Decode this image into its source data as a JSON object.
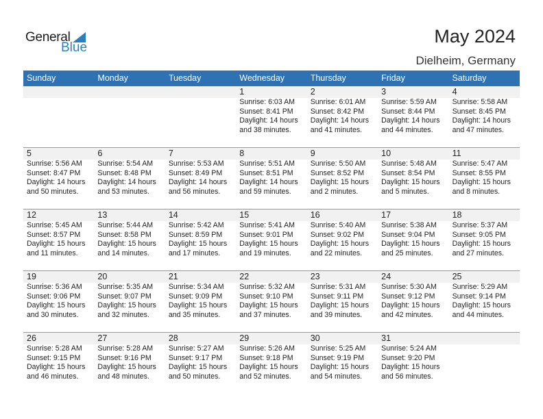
{
  "logo": {
    "word1": "General",
    "word2": "Blue",
    "accent": "#2a7fc1"
  },
  "header": {
    "title": "May 2024",
    "location": "Dielheim, Germany"
  },
  "colors": {
    "header_bg": "#2e72b3",
    "daybar_bg": "#f1f1f1"
  },
  "weekdays": [
    "Sunday",
    "Monday",
    "Tuesday",
    "Wednesday",
    "Thursday",
    "Friday",
    "Saturday"
  ],
  "weeks": [
    [
      null,
      null,
      null,
      {
        "day": "1",
        "sunrise": "Sunrise: 6:03 AM",
        "sunset": "Sunset: 8:41 PM",
        "daylight1": "Daylight: 14 hours",
        "daylight2": "and 38 minutes."
      },
      {
        "day": "2",
        "sunrise": "Sunrise: 6:01 AM",
        "sunset": "Sunset: 8:42 PM",
        "daylight1": "Daylight: 14 hours",
        "daylight2": "and 41 minutes."
      },
      {
        "day": "3",
        "sunrise": "Sunrise: 5:59 AM",
        "sunset": "Sunset: 8:44 PM",
        "daylight1": "Daylight: 14 hours",
        "daylight2": "and 44 minutes."
      },
      {
        "day": "4",
        "sunrise": "Sunrise: 5:58 AM",
        "sunset": "Sunset: 8:45 PM",
        "daylight1": "Daylight: 14 hours",
        "daylight2": "and 47 minutes."
      }
    ],
    [
      {
        "day": "5",
        "sunrise": "Sunrise: 5:56 AM",
        "sunset": "Sunset: 8:47 PM",
        "daylight1": "Daylight: 14 hours",
        "daylight2": "and 50 minutes."
      },
      {
        "day": "6",
        "sunrise": "Sunrise: 5:54 AM",
        "sunset": "Sunset: 8:48 PM",
        "daylight1": "Daylight: 14 hours",
        "daylight2": "and 53 minutes."
      },
      {
        "day": "7",
        "sunrise": "Sunrise: 5:53 AM",
        "sunset": "Sunset: 8:49 PM",
        "daylight1": "Daylight: 14 hours",
        "daylight2": "and 56 minutes."
      },
      {
        "day": "8",
        "sunrise": "Sunrise: 5:51 AM",
        "sunset": "Sunset: 8:51 PM",
        "daylight1": "Daylight: 14 hours",
        "daylight2": "and 59 minutes."
      },
      {
        "day": "9",
        "sunrise": "Sunrise: 5:50 AM",
        "sunset": "Sunset: 8:52 PM",
        "daylight1": "Daylight: 15 hours",
        "daylight2": "and 2 minutes."
      },
      {
        "day": "10",
        "sunrise": "Sunrise: 5:48 AM",
        "sunset": "Sunset: 8:54 PM",
        "daylight1": "Daylight: 15 hours",
        "daylight2": "and 5 minutes."
      },
      {
        "day": "11",
        "sunrise": "Sunrise: 5:47 AM",
        "sunset": "Sunset: 8:55 PM",
        "daylight1": "Daylight: 15 hours",
        "daylight2": "and 8 minutes."
      }
    ],
    [
      {
        "day": "12",
        "sunrise": "Sunrise: 5:45 AM",
        "sunset": "Sunset: 8:57 PM",
        "daylight1": "Daylight: 15 hours",
        "daylight2": "and 11 minutes."
      },
      {
        "day": "13",
        "sunrise": "Sunrise: 5:44 AM",
        "sunset": "Sunset: 8:58 PM",
        "daylight1": "Daylight: 15 hours",
        "daylight2": "and 14 minutes."
      },
      {
        "day": "14",
        "sunrise": "Sunrise: 5:42 AM",
        "sunset": "Sunset: 8:59 PM",
        "daylight1": "Daylight: 15 hours",
        "daylight2": "and 17 minutes."
      },
      {
        "day": "15",
        "sunrise": "Sunrise: 5:41 AM",
        "sunset": "Sunset: 9:01 PM",
        "daylight1": "Daylight: 15 hours",
        "daylight2": "and 19 minutes."
      },
      {
        "day": "16",
        "sunrise": "Sunrise: 5:40 AM",
        "sunset": "Sunset: 9:02 PM",
        "daylight1": "Daylight: 15 hours",
        "daylight2": "and 22 minutes."
      },
      {
        "day": "17",
        "sunrise": "Sunrise: 5:38 AM",
        "sunset": "Sunset: 9:04 PM",
        "daylight1": "Daylight: 15 hours",
        "daylight2": "and 25 minutes."
      },
      {
        "day": "18",
        "sunrise": "Sunrise: 5:37 AM",
        "sunset": "Sunset: 9:05 PM",
        "daylight1": "Daylight: 15 hours",
        "daylight2": "and 27 minutes."
      }
    ],
    [
      {
        "day": "19",
        "sunrise": "Sunrise: 5:36 AM",
        "sunset": "Sunset: 9:06 PM",
        "daylight1": "Daylight: 15 hours",
        "daylight2": "and 30 minutes."
      },
      {
        "day": "20",
        "sunrise": "Sunrise: 5:35 AM",
        "sunset": "Sunset: 9:07 PM",
        "daylight1": "Daylight: 15 hours",
        "daylight2": "and 32 minutes."
      },
      {
        "day": "21",
        "sunrise": "Sunrise: 5:34 AM",
        "sunset": "Sunset: 9:09 PM",
        "daylight1": "Daylight: 15 hours",
        "daylight2": "and 35 minutes."
      },
      {
        "day": "22",
        "sunrise": "Sunrise: 5:32 AM",
        "sunset": "Sunset: 9:10 PM",
        "daylight1": "Daylight: 15 hours",
        "daylight2": "and 37 minutes."
      },
      {
        "day": "23",
        "sunrise": "Sunrise: 5:31 AM",
        "sunset": "Sunset: 9:11 PM",
        "daylight1": "Daylight: 15 hours",
        "daylight2": "and 39 minutes."
      },
      {
        "day": "24",
        "sunrise": "Sunrise: 5:30 AM",
        "sunset": "Sunset: 9:12 PM",
        "daylight1": "Daylight: 15 hours",
        "daylight2": "and 42 minutes."
      },
      {
        "day": "25",
        "sunrise": "Sunrise: 5:29 AM",
        "sunset": "Sunset: 9:14 PM",
        "daylight1": "Daylight: 15 hours",
        "daylight2": "and 44 minutes."
      }
    ],
    [
      {
        "day": "26",
        "sunrise": "Sunrise: 5:28 AM",
        "sunset": "Sunset: 9:15 PM",
        "daylight1": "Daylight: 15 hours",
        "daylight2": "and 46 minutes."
      },
      {
        "day": "27",
        "sunrise": "Sunrise: 5:28 AM",
        "sunset": "Sunset: 9:16 PM",
        "daylight1": "Daylight: 15 hours",
        "daylight2": "and 48 minutes."
      },
      {
        "day": "28",
        "sunrise": "Sunrise: 5:27 AM",
        "sunset": "Sunset: 9:17 PM",
        "daylight1": "Daylight: 15 hours",
        "daylight2": "and 50 minutes."
      },
      {
        "day": "29",
        "sunrise": "Sunrise: 5:26 AM",
        "sunset": "Sunset: 9:18 PM",
        "daylight1": "Daylight: 15 hours",
        "daylight2": "and 52 minutes."
      },
      {
        "day": "30",
        "sunrise": "Sunrise: 5:25 AM",
        "sunset": "Sunset: 9:19 PM",
        "daylight1": "Daylight: 15 hours",
        "daylight2": "and 54 minutes."
      },
      {
        "day": "31",
        "sunrise": "Sunrise: 5:24 AM",
        "sunset": "Sunset: 9:20 PM",
        "daylight1": "Daylight: 15 hours",
        "daylight2": "and 56 minutes."
      },
      null
    ]
  ]
}
